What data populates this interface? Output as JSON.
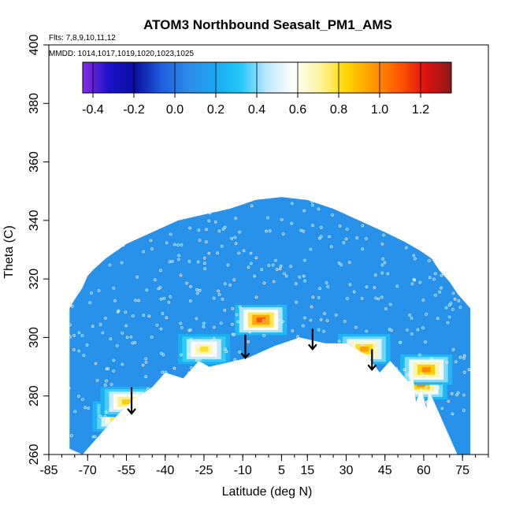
{
  "chart_data": {
    "type": "heatmap",
    "title": "ATOM3 Northbound Seasalt_PM1_AMS",
    "flights_note": "Flts: 7,8,9,10,11,12",
    "dates_note": "MMDD: 1014,1017,1019,1020,1023,1025",
    "xlabel": "Latitude (deg N)",
    "ylabel": "Theta (C)",
    "xlim": [
      -85,
      85
    ],
    "ylim": [
      260,
      400
    ],
    "xticks": [
      -85,
      -70,
      -55,
      -40,
      -25,
      -10,
      5,
      15,
      30,
      45,
      60,
      75
    ],
    "yticks": [
      260,
      280,
      300,
      320,
      340,
      360,
      380,
      400
    ],
    "colorbar": {
      "range": [
        -0.45,
        1.35
      ],
      "ticks": [
        -0.4,
        -0.2,
        0.0,
        0.2,
        0.4,
        0.6,
        0.8,
        1.0,
        1.2
      ],
      "tick_labels": [
        "-0.4",
        "-0.2",
        "0.0",
        "0.2",
        "0.4",
        "0.6",
        "0.8",
        "1.0",
        "1.2"
      ],
      "stops": [
        "#8a2be2",
        "#1a12c8",
        "#0a10a0",
        "#1e5fe0",
        "#2e8ae8",
        "#1aa8f0",
        "#22c8f8",
        "#bfe8ff",
        "#ffffff",
        "#fff4a0",
        "#ffd600",
        "#ff9900",
        "#ff5a00",
        "#e01010",
        "#8b1a1a"
      ]
    },
    "background_value": 0.1,
    "coverage": {
      "top": [
        [
          -77,
          310
        ],
        [
          -75,
          313
        ],
        [
          -72,
          317
        ],
        [
          -70,
          321
        ],
        [
          -68,
          323
        ],
        [
          -63,
          327
        ],
        [
          -55,
          332
        ],
        [
          -45,
          336
        ],
        [
          -35,
          340
        ],
        [
          -25,
          342
        ],
        [
          -15,
          344
        ],
        [
          -5,
          347
        ],
        [
          5,
          348
        ],
        [
          15,
          347
        ],
        [
          25,
          344
        ],
        [
          35,
          340
        ],
        [
          45,
          336
        ],
        [
          52,
          333
        ],
        [
          58,
          330
        ],
        [
          63,
          327
        ],
        [
          66,
          323
        ],
        [
          70,
          319
        ],
        [
          73,
          315
        ],
        [
          76,
          312
        ],
        [
          78,
          310
        ]
      ],
      "bottom": [
        [
          78,
          260
        ],
        [
          73,
          260
        ],
        [
          68,
          270
        ],
        [
          64,
          278
        ],
        [
          62,
          282
        ],
        [
          61,
          276
        ],
        [
          59,
          283
        ],
        [
          57,
          278
        ],
        [
          56,
          286
        ],
        [
          54,
          285
        ],
        [
          47,
          292
        ],
        [
          43,
          288
        ],
        [
          38,
          294
        ],
        [
          30,
          298
        ],
        [
          22,
          298
        ],
        [
          12,
          300
        ],
        [
          2,
          297
        ],
        [
          -8,
          293
        ],
        [
          -18,
          291
        ],
        [
          -23,
          290
        ],
        [
          -27,
          292
        ],
        [
          -33,
          286
        ],
        [
          -40,
          288
        ],
        [
          -45,
          283
        ],
        [
          -52,
          279
        ],
        [
          -58,
          274
        ],
        [
          -64,
          268
        ],
        [
          -68,
          264
        ],
        [
          -72,
          260
        ],
        [
          -77,
          262
        ]
      ]
    },
    "hotspots": [
      {
        "lat": -58,
        "theta": 273,
        "value": 0.9
      },
      {
        "lat": -55,
        "theta": 278,
        "value": 0.85
      },
      {
        "lat": -25,
        "theta": 296,
        "value": 0.8
      },
      {
        "lat": -3,
        "theta": 306,
        "value": 1.1
      },
      {
        "lat": 37,
        "theta": 296,
        "value": 0.95
      },
      {
        "lat": 59,
        "theta": 284,
        "value": 1.0
      },
      {
        "lat": 61,
        "theta": 289,
        "value": 1.0
      }
    ],
    "arrows": [
      {
        "lat": -53,
        "theta_top": 283,
        "theta_bottom": 274
      },
      {
        "lat": -9,
        "theta_top": 301,
        "theta_bottom": 293
      },
      {
        "lat": 17,
        "theta_top": 303,
        "theta_bottom": 296
      },
      {
        "lat": 40,
        "theta_top": 296,
        "theta_bottom": 289
      }
    ]
  }
}
